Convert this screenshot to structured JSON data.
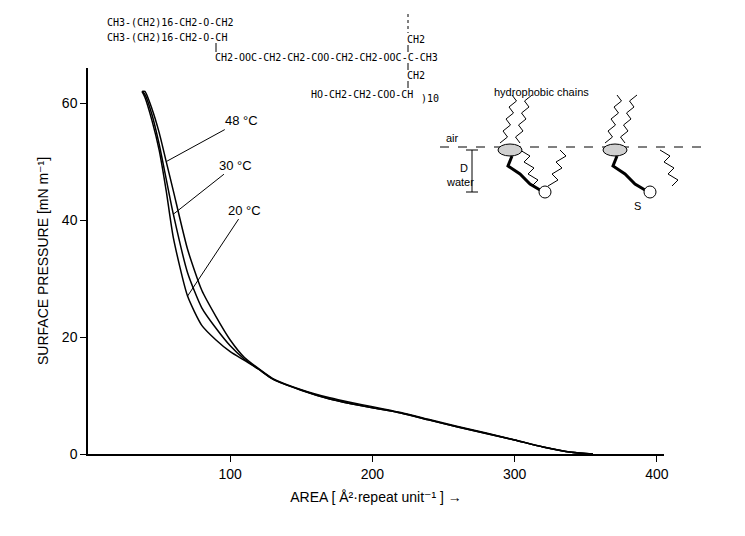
{
  "chart_data": {
    "type": "line",
    "x_label": "AREA [ Å²·repeat unit⁻¹ ] →",
    "y_label": "SURFACE PRESSURE [mN m⁻¹]",
    "xlim": [
      0,
      405
    ],
    "ylim": [
      0,
      66
    ],
    "xticks": [
      100,
      200,
      300,
      400
    ],
    "yticks": [
      0,
      20,
      40,
      60
    ],
    "grid": false,
    "series": [
      {
        "name": "48 °C",
        "color": "#000000",
        "line_style": "solid",
        "x": [
          355,
          340,
          320,
          300,
          280,
          260,
          240,
          220,
          200,
          185,
          170,
          150,
          130,
          120,
          110,
          100,
          90,
          80,
          70,
          60,
          55,
          50,
          45,
          40,
          38
        ],
        "values": [
          0,
          0.3,
          1.2,
          2.4,
          3.6,
          4.7,
          5.9,
          7.1,
          8.1,
          8.8,
          9.6,
          11.0,
          12.9,
          14.6,
          16.5,
          19.5,
          23.5,
          28,
          35,
          45,
          50,
          55,
          59,
          62,
          62
        ]
      },
      {
        "name": "30 °C",
        "color": "#000000",
        "line_style": "solid",
        "x": [
          355,
          340,
          320,
          300,
          280,
          260,
          240,
          220,
          200,
          185,
          170,
          150,
          130,
          120,
          110,
          100,
          90,
          80,
          70,
          60,
          55,
          50,
          45,
          40,
          38
        ],
        "values": [
          0,
          0.3,
          1.2,
          2.4,
          3.5,
          4.6,
          5.8,
          7.0,
          7.9,
          8.6,
          9.4,
          10.9,
          12.8,
          14.5,
          16.2,
          18.5,
          21.5,
          25,
          31,
          41,
          47,
          53,
          58,
          61.5,
          62
        ]
      },
      {
        "name": "20 °C",
        "color": "#000000",
        "line_style": "solid",
        "x": [
          355,
          340,
          320,
          300,
          280,
          260,
          240,
          220,
          200,
          185,
          170,
          150,
          130,
          120,
          110,
          100,
          90,
          80,
          70,
          60,
          55,
          50,
          45,
          40,
          38
        ],
        "values": [
          0,
          0.3,
          1.2,
          2.4,
          3.5,
          4.6,
          5.8,
          7.0,
          7.9,
          8.6,
          9.4,
          10.9,
          12.8,
          14.5,
          16.0,
          17.5,
          19.5,
          22,
          27,
          37,
          45,
          52,
          57,
          61,
          62
        ]
      }
    ],
    "annotations": [
      {
        "text": "48 °C",
        "x": 55,
        "y": 50
      },
      {
        "text": "30 °C",
        "x": 60,
        "y": 41
      },
      {
        "text": "20 °C",
        "x": 70,
        "y": 27
      }
    ],
    "structure": [
      "CH3-(CH2)16-CH2-O-CH2",
      "CH3-(CH2)16-CH2-O-CH",
      "CH2-OOC-CH2-CH2-COO-CH2-CH2-OOC-C-CH3",
      "CH2",
      "CH2",
      "HO-CH2-CH2-COO-CH",
      ")10"
    ],
    "schematic_labels": [
      "hydrophobic chains",
      "air",
      "water",
      "D",
      "S"
    ]
  }
}
